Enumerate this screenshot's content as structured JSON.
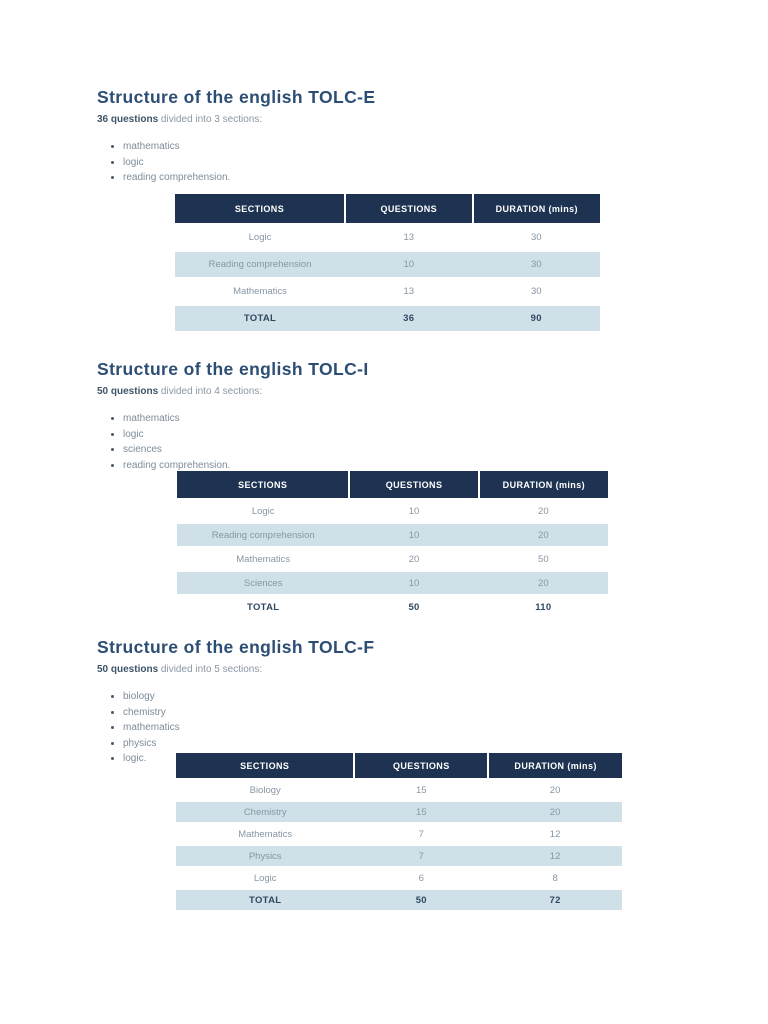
{
  "colors": {
    "table_header_bg": "#1d3351",
    "table_row_alt_bg": "#cfe0e9",
    "heading_text": "#2d4e74",
    "body_text": "#8b97a3"
  },
  "sections": [
    {
      "title": "Structure of the english TOLC-E",
      "intro_bold": "36 questions",
      "intro_rest": " divided into 3 sections:",
      "bullets": [
        "mathematics",
        "logic",
        "reading comprehension."
      ],
      "table": {
        "headers": [
          "SECTIONS",
          "QUESTIONS",
          "DURATION (mins)"
        ],
        "rows": [
          [
            "Logic",
            "13",
            "30"
          ],
          [
            "Reading comprehension",
            "10",
            "30"
          ],
          [
            "Mathematics",
            "13",
            "30"
          ]
        ],
        "total": [
          "TOTAL",
          "36",
          "90"
        ]
      }
    },
    {
      "title": "Structure of the english TOLC-I",
      "intro_bold": "50 questions",
      "intro_rest": " divided into 4 sections:",
      "bullets": [
        "mathematics",
        "logic",
        "sciences",
        "reading comprehension."
      ],
      "table": {
        "headers": [
          "SECTIONS",
          "QUESTIONS",
          "DURATION (mins)"
        ],
        "rows": [
          [
            "Logic",
            "10",
            "20"
          ],
          [
            "Reading comprehension",
            "10",
            "20"
          ],
          [
            "Mathematics",
            "20",
            "50"
          ],
          [
            "Sciences",
            "10",
            "20"
          ]
        ],
        "total": [
          "TOTAL",
          "50",
          "110"
        ]
      }
    },
    {
      "title": "Structure of the english TOLC-F",
      "intro_bold": "50 questions",
      "intro_rest": " divided into 5 sections:",
      "bullets": [
        "biology",
        "chemistry",
        "mathematics",
        "physics",
        "logic."
      ],
      "table": {
        "headers": [
          "SECTIONS",
          "QUESTIONS",
          "DURATION (mins)"
        ],
        "rows": [
          [
            "Biology",
            "15",
            "20"
          ],
          [
            "Chemistry",
            "15",
            "20"
          ],
          [
            "Mathematics",
            "7",
            "12"
          ],
          [
            "Physics",
            "7",
            "12"
          ],
          [
            "Logic",
            "6",
            "8"
          ]
        ],
        "total": [
          "TOTAL",
          "50",
          "72"
        ]
      }
    }
  ]
}
